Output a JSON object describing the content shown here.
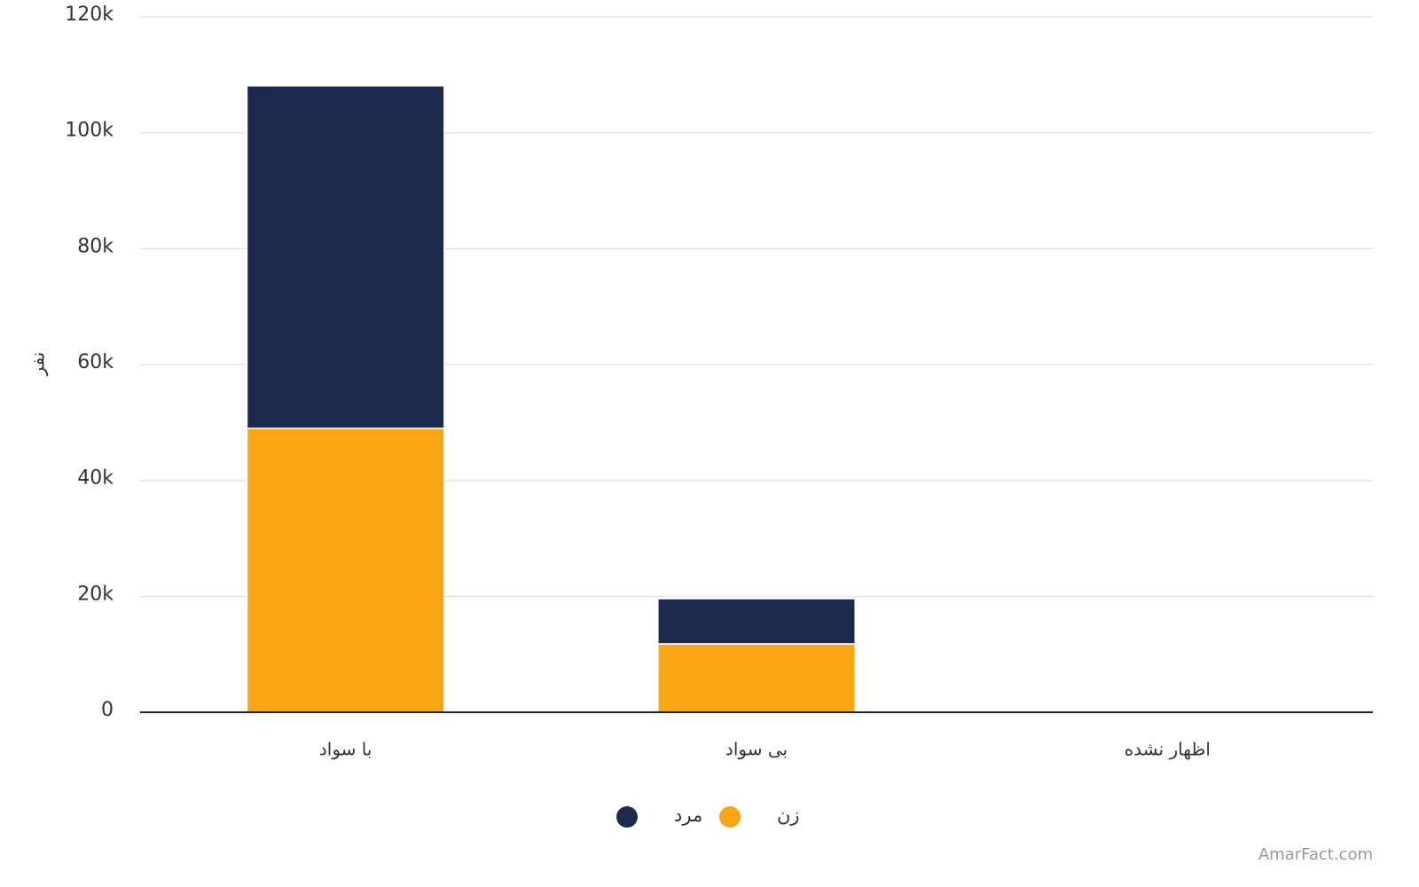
{
  "chart_data": {
    "type": "stacked_bar",
    "y_label": "نفر",
    "categories": [
      "با سواد",
      "بی سواد",
      "اظهار نشده"
    ],
    "series": [
      {
        "name": "زن",
        "color": "#f9a514",
        "values": [
          49000,
          11800,
          0
        ]
      },
      {
        "name": "مرد",
        "color": "#1c2a4d",
        "values": [
          59100,
          7800,
          0
        ]
      }
    ],
    "ylim": [
      0,
      120000
    ],
    "yticks": [
      0,
      {
        "value": 20000,
        "label": "20k"
      },
      {
        "value": 40000,
        "label": "40k"
      },
      {
        "value": 60000,
        "label": "60k"
      },
      {
        "value": 80000,
        "label": "80k"
      },
      {
        "value": 100000,
        "label": "100k"
      },
      {
        "value": 120000,
        "label": "120k"
      }
    ],
    "grid": true,
    "legend": "bottom",
    "watermark": "AmarFact.com"
  }
}
